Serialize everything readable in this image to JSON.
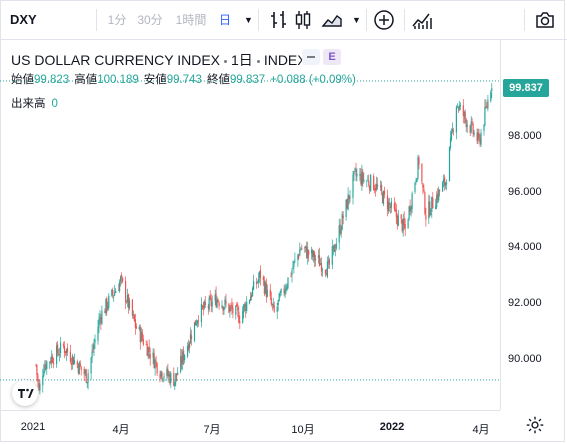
{
  "toolbar": {
    "symbol": "DXY",
    "intervals": [
      "1分",
      "30分",
      "1時間",
      "日"
    ],
    "active_interval": "日"
  },
  "legend": {
    "title": "US DOLLAR CURRENCY INDEX",
    "interval": "1日",
    "exchange": "INDEX",
    "e_badge": "E",
    "open_label": "始値",
    "open": "99.823",
    "high_label": "高値",
    "high": "100.189",
    "low_label": "安値",
    "low": "99.743",
    "close_label": "終値",
    "close": "99.837",
    "change": "+0.088 (+0.09%)",
    "volume_label": "出来高",
    "volume": "0"
  },
  "last_price_label": "99.837",
  "colors": {
    "up": "#26a69a",
    "down": "#ef5350",
    "accent": "#2962ff"
  },
  "chart_data": {
    "type": "candlestick",
    "title": "US DOLLAR CURRENCY INDEX",
    "x_tick_labels": [
      "2021",
      "4月",
      "7月",
      "10月",
      "2022",
      "4月"
    ],
    "y_tick_labels": [
      "90.000",
      "92.000",
      "94.000",
      "96.000",
      "98.000"
    ],
    "ylim": [
      88.9,
      101.2
    ],
    "last_price": 99.837,
    "reference_price": 89.9,
    "anchors": [
      [
        "2021-01-04",
        90.4
      ],
      [
        "2021-01-07",
        89.5
      ],
      [
        "2021-01-12",
        90.4
      ],
      [
        "2021-02-01",
        91.0
      ],
      [
        "2021-02-25",
        90.0
      ],
      [
        "2021-03-10",
        92.0
      ],
      [
        "2021-03-31",
        93.2
      ],
      [
        "2021-04-15",
        91.7
      ],
      [
        "2021-05-10",
        90.2
      ],
      [
        "2021-05-25",
        89.9
      ],
      [
        "2021-06-18",
        92.1
      ],
      [
        "2021-07-07",
        92.6
      ],
      [
        "2021-07-30",
        92.0
      ],
      [
        "2021-08-20",
        93.4
      ],
      [
        "2021-09-03",
        92.1
      ],
      [
        "2021-09-30",
        94.3
      ],
      [
        "2021-10-28",
        93.6
      ],
      [
        "2021-11-24",
        96.7
      ],
      [
        "2021-12-14",
        96.4
      ],
      [
        "2022-01-14",
        94.9
      ],
      [
        "2022-01-28",
        97.2
      ],
      [
        "2022-02-04",
        95.4
      ],
      [
        "2022-02-24",
        96.5
      ],
      [
        "2022-03-07",
        99.1
      ],
      [
        "2022-03-30",
        97.8
      ],
      [
        "2022-04-12",
        99.8
      ]
    ]
  }
}
